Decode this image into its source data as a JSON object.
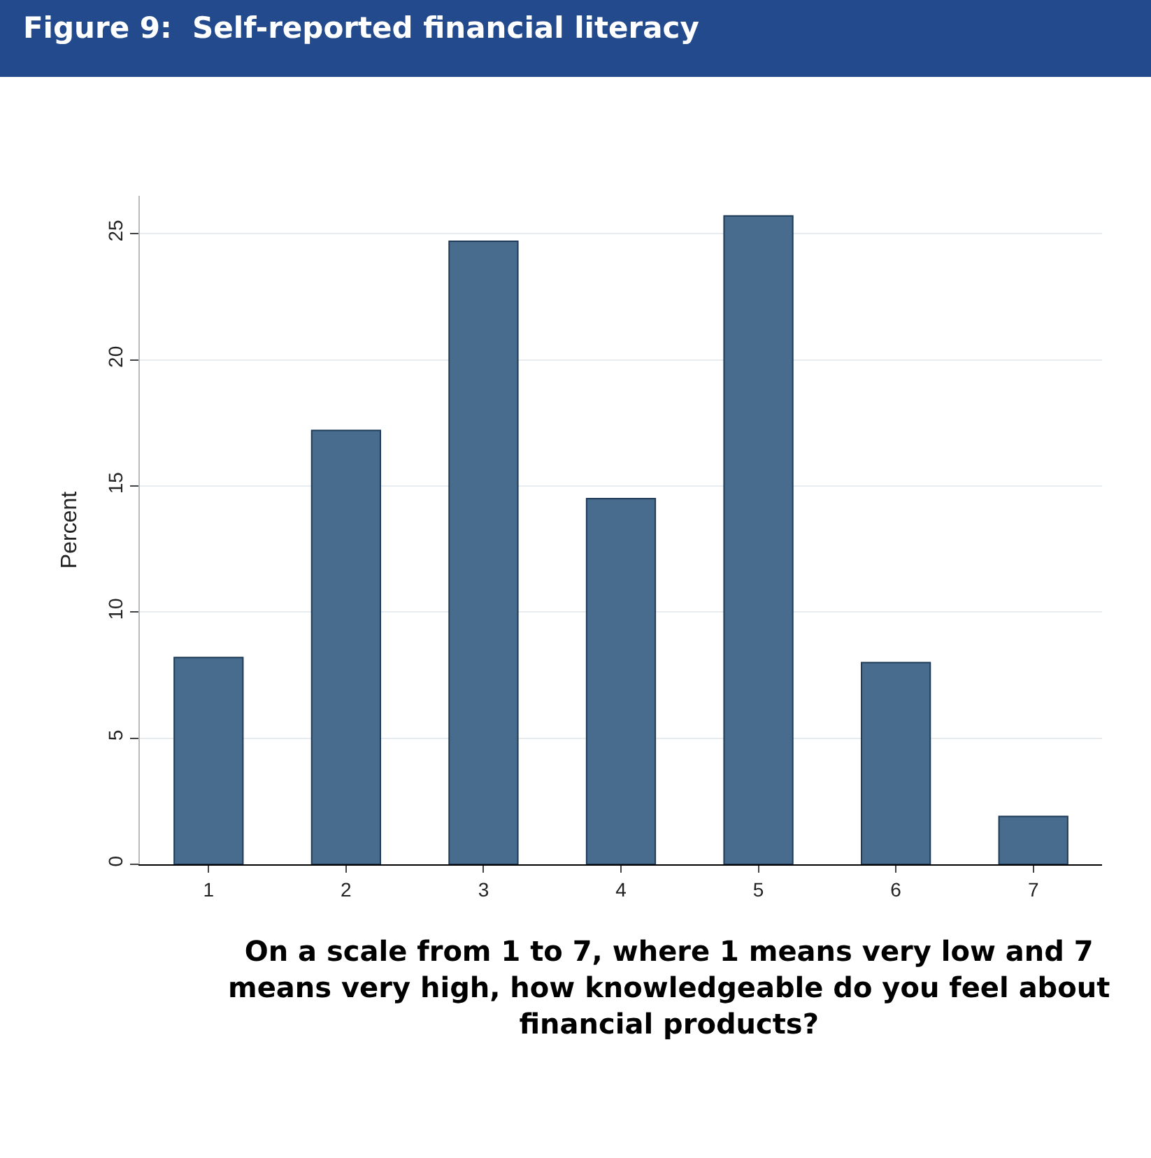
{
  "chart_data": {
    "type": "bar",
    "title": "Figure 9:  Self-reported financial literacy",
    "ylabel": "Percent",
    "categories": [
      "1",
      "2",
      "3",
      "4",
      "5",
      "6",
      "7"
    ],
    "values": [
      8.2,
      17.2,
      24.7,
      14.5,
      25.7,
      8.0,
      1.9
    ],
    "color": "#476c8e",
    "ylim": [
      0,
      26.5
    ],
    "yticks": [
      0,
      5,
      10,
      15,
      20,
      25
    ],
    "grid": "y",
    "annotations": [
      "On a scale from 1 to 7, where 1 means very low and 7 means very high, how knowledgeable do you feel about financial products?"
    ]
  }
}
